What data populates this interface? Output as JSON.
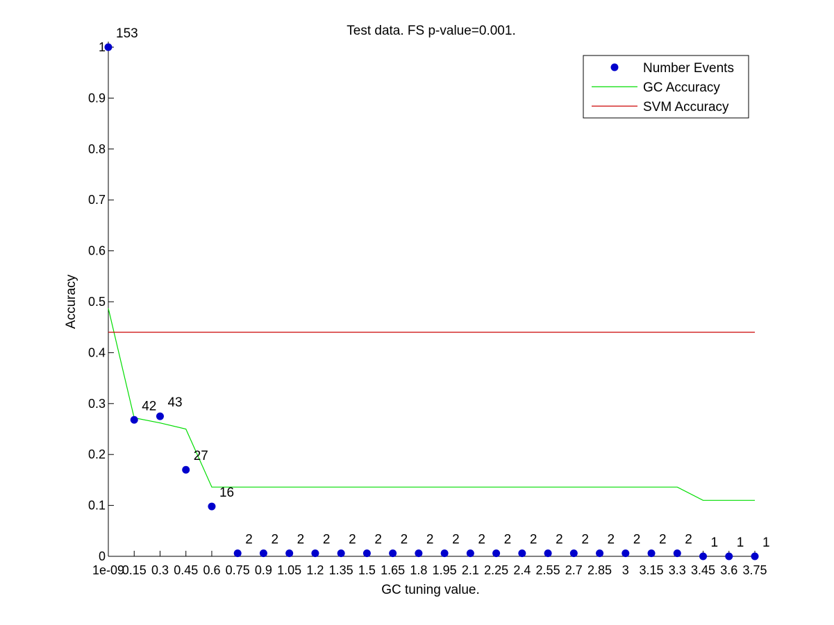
{
  "chart_data": {
    "type": "scatter",
    "title": "Test data. FS p-value=0.001.",
    "xlabel": "GC tuning value.",
    "ylabel": "Accuracy",
    "categories": [
      "1e-09",
      "0.15",
      "0.3",
      "0.45",
      "0.6",
      "0.75",
      "0.9",
      "1.05",
      "1.2",
      "1.35",
      "1.5",
      "1.65",
      "1.8",
      "1.95",
      "2.1",
      "2.25",
      "2.4",
      "2.55",
      "2.7",
      "2.85",
      "3",
      "3.15",
      "3.3",
      "3.45",
      "3.6",
      "3.75"
    ],
    "x_tick_labels": [
      "1e-09",
      "0.15",
      "0.3",
      "0.45",
      "0.6",
      "0.75",
      "0.9",
      "1.05",
      "1.2",
      "1.35",
      "1.5",
      "1.65",
      "1.8",
      "1.95",
      "2.1",
      "2.25",
      "2.4",
      "2.55",
      "2.7",
      "2.85",
      "3",
      "3.15",
      "3.3",
      "3.45",
      "3.6",
      "3.75"
    ],
    "y_ticks": [
      "0",
      "0.1",
      "0.2",
      "0.3",
      "0.4",
      "0.5",
      "0.6",
      "0.7",
      "0.8",
      "0.9",
      "1"
    ],
    "ylim": [
      0,
      1
    ],
    "grid": false,
    "legend_position": "top-right",
    "series": [
      {
        "name": "Number Events",
        "kind": "scatter",
        "color": "#0000cc",
        "values": [
          1.0,
          0.268,
          0.275,
          0.17,
          0.098,
          0.006,
          0.006,
          0.006,
          0.006,
          0.006,
          0.006,
          0.006,
          0.006,
          0.006,
          0.006,
          0.006,
          0.006,
          0.006,
          0.006,
          0.006,
          0.006,
          0.006,
          0.006,
          0.0,
          0.0,
          0.0
        ],
        "labels": [
          "153",
          "42",
          "43",
          "27",
          "16",
          "2",
          "2",
          "2",
          "2",
          "2",
          "2",
          "2",
          "2",
          "2",
          "2",
          "2",
          "2",
          "2",
          "2",
          "2",
          "2",
          "2",
          "2",
          "1",
          "1",
          "1"
        ]
      },
      {
        "name": "GC Accuracy",
        "kind": "line",
        "color": "#00dd00",
        "values": [
          0.487,
          0.272,
          0.262,
          0.25,
          0.136,
          0.136,
          0.136,
          0.136,
          0.136,
          0.136,
          0.136,
          0.136,
          0.136,
          0.136,
          0.136,
          0.136,
          0.136,
          0.136,
          0.136,
          0.136,
          0.136,
          0.136,
          0.136,
          0.11,
          0.11,
          0.11
        ]
      },
      {
        "name": "SVM Accuracy",
        "kind": "line",
        "color": "#cc0000",
        "values": [
          0.44,
          0.44,
          0.44,
          0.44,
          0.44,
          0.44,
          0.44,
          0.44,
          0.44,
          0.44,
          0.44,
          0.44,
          0.44,
          0.44,
          0.44,
          0.44,
          0.44,
          0.44,
          0.44,
          0.44,
          0.44,
          0.44,
          0.44,
          0.44,
          0.44,
          0.44
        ]
      }
    ]
  }
}
